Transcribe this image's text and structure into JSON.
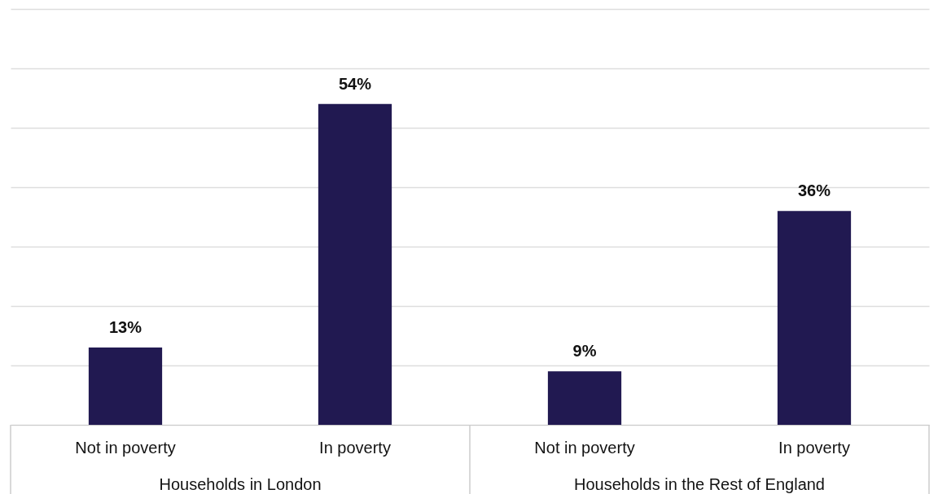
{
  "chart_data": {
    "type": "bar",
    "categories": [
      "Not in poverty",
      "In poverty",
      "Not in poverty",
      "In poverty"
    ],
    "values": [
      13,
      54,
      9,
      36
    ],
    "color": "#211951",
    "value_labels": [
      "13%",
      "54%",
      "9%",
      "36%"
    ],
    "annotations": [
      "Households in London",
      "Households in the Rest of England"
    ],
    "ylim": [
      0,
      70
    ],
    "yticks": [
      {
        "value": 0,
        "label": null
      },
      {
        "value": 10,
        "label": null
      },
      {
        "value": 20,
        "label": null
      },
      {
        "value": 30,
        "label": null
      },
      {
        "value": 40,
        "label": null
      },
      {
        "value": 50,
        "label": null
      },
      {
        "value": 60,
        "label": null
      },
      {
        "value": 70,
        "label": null
      }
    ],
    "grid": "y",
    "tick_labels": "x"
  }
}
